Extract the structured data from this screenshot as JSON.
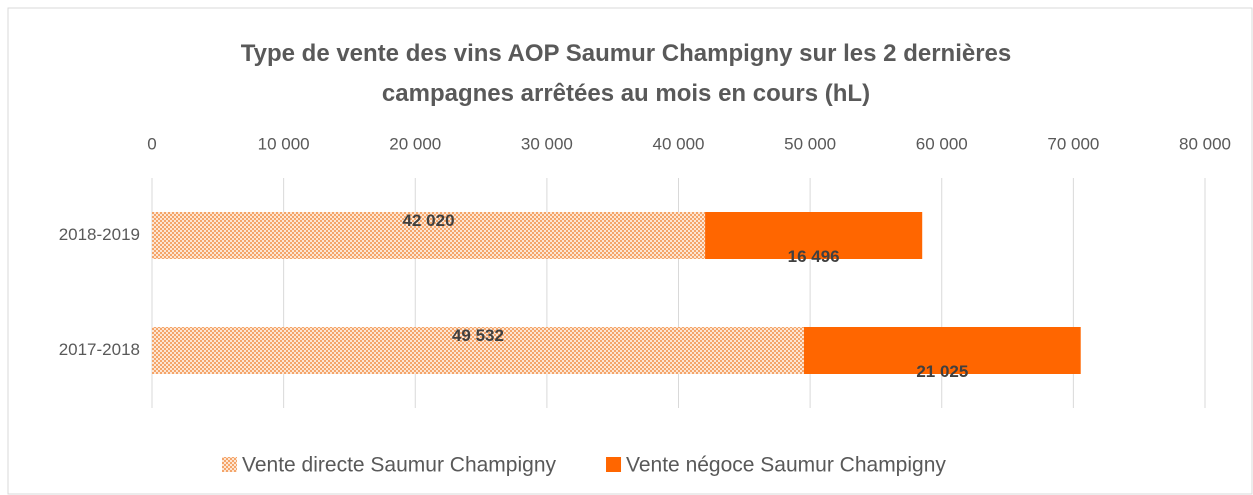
{
  "chart_data": {
    "type": "hbar_stacked",
    "title": "Type de vente des vins AOP Saumur Champigny sur les 2 dernières campagnes arrêtées au mois en cours (hL)",
    "categories": [
      "2018-2019",
      "2017-2018"
    ],
    "series": [
      {
        "name": "Vente directe Saumur Champigny",
        "color": "#f4a56a",
        "pattern": "dotted",
        "values": [
          42020,
          49532
        ],
        "value_labels": [
          "42 020",
          "49 532"
        ]
      },
      {
        "name": "Vente négoce Saumur Champigny",
        "color": "#ff6600",
        "values": [
          16496,
          21025
        ],
        "value_labels": [
          "16 496",
          "21 025"
        ]
      }
    ],
    "xlim": [
      0,
      80000
    ],
    "xticks": [
      0,
      {
        "value": 10000,
        "label": "10 000"
      },
      {
        "value": 20000,
        "label": "20 000"
      },
      {
        "value": 30000,
        "label": "30 000"
      },
      {
        "value": 40000,
        "label": "40 000"
      },
      {
        "value": 50000,
        "label": "50 000"
      },
      {
        "value": 60000,
        "label": "60 000"
      },
      {
        "value": 70000,
        "label": "70 000"
      },
      {
        "value": 80000,
        "label": "80 000"
      }
    ],
    "grid": true,
    "legend": "bottom"
  }
}
